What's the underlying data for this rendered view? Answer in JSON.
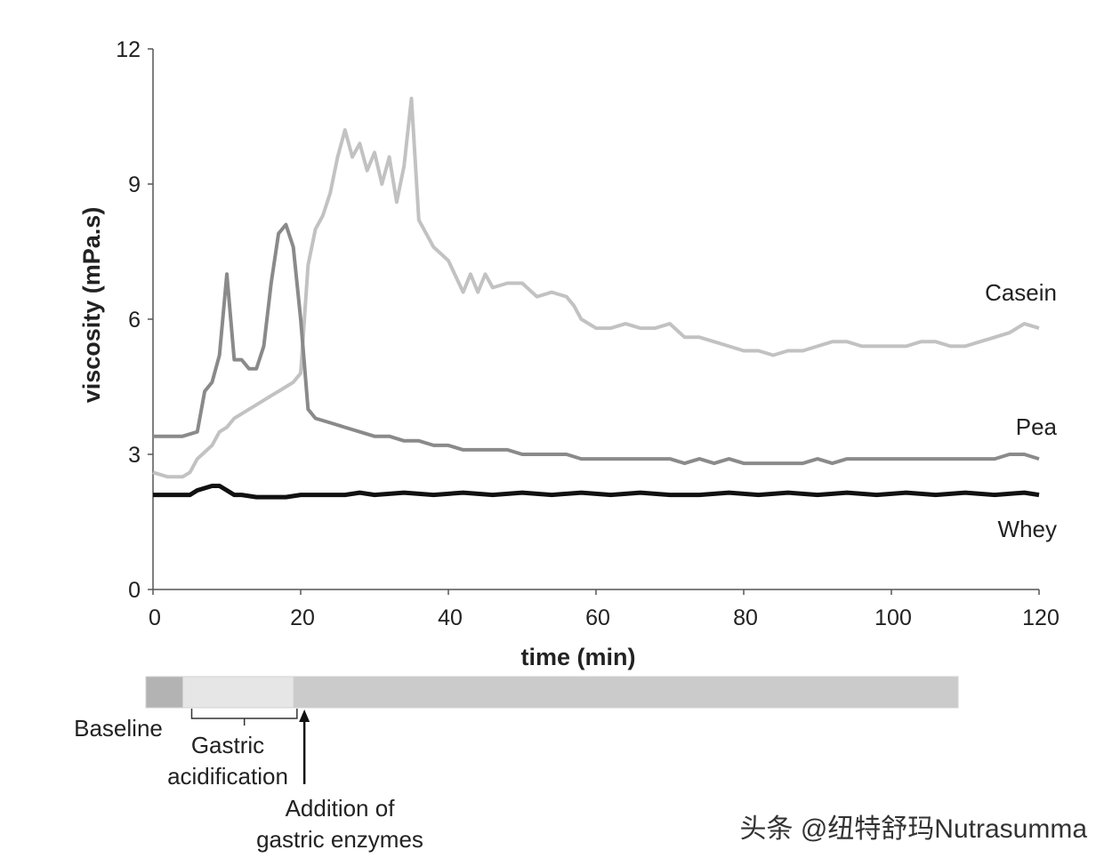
{
  "chart_data": {
    "type": "line",
    "title": "",
    "xlabel": "time (min)",
    "ylabel": "viscosity (mPa.s)",
    "xlim": [
      0,
      120
    ],
    "ylim": [
      0,
      12
    ],
    "xticks": [
      0,
      20,
      40,
      60,
      80,
      100,
      120
    ],
    "yticks": [
      0,
      3,
      6,
      9,
      12
    ],
    "grid": false,
    "legend": "inline labels at right end of each line",
    "series": [
      {
        "name": "Casein",
        "color": "#c2c2c2",
        "x": [
          0,
          2,
          4,
          5,
          6,
          8,
          9,
          10,
          11,
          12,
          13,
          14,
          15,
          16,
          17,
          18,
          19,
          20,
          21,
          22,
          23,
          24,
          25,
          26,
          27,
          28,
          29,
          30,
          31,
          32,
          33,
          34,
          35,
          36,
          37,
          38,
          40,
          42,
          43,
          44,
          45,
          46,
          48,
          50,
          52,
          54,
          56,
          57,
          58,
          60,
          62,
          64,
          66,
          68,
          70,
          72,
          74,
          76,
          78,
          80,
          82,
          84,
          86,
          88,
          90,
          92,
          94,
          96,
          98,
          100,
          102,
          104,
          106,
          108,
          110,
          112,
          114,
          116,
          118,
          120
        ],
        "y": [
          2.6,
          2.5,
          2.5,
          2.6,
          2.9,
          3.2,
          3.5,
          3.6,
          3.8,
          3.9,
          4.0,
          4.1,
          4.2,
          4.3,
          4.4,
          4.5,
          4.6,
          4.8,
          7.2,
          8.0,
          8.3,
          8.8,
          9.6,
          10.2,
          9.6,
          9.9,
          9.3,
          9.7,
          9.0,
          9.6,
          8.6,
          9.4,
          10.9,
          8.2,
          7.9,
          7.6,
          7.3,
          6.6,
          7.0,
          6.6,
          7.0,
          6.7,
          6.8,
          6.8,
          6.5,
          6.6,
          6.5,
          6.3,
          6.0,
          5.8,
          5.8,
          5.9,
          5.8,
          5.8,
          5.9,
          5.6,
          5.6,
          5.5,
          5.4,
          5.3,
          5.3,
          5.2,
          5.3,
          5.3,
          5.4,
          5.5,
          5.5,
          5.4,
          5.4,
          5.4,
          5.4,
          5.5,
          5.5,
          5.4,
          5.4,
          5.5,
          5.6,
          5.7,
          5.9,
          5.8
        ]
      },
      {
        "name": "Pea",
        "color": "#8a8a8a",
        "x": [
          0,
          2,
          4,
          6,
          7,
          8,
          9,
          10,
          11,
          12,
          13,
          14,
          15,
          16,
          17,
          18,
          19,
          20,
          21,
          22,
          24,
          26,
          28,
          30,
          32,
          34,
          36,
          38,
          40,
          42,
          44,
          46,
          48,
          50,
          52,
          54,
          56,
          58,
          60,
          62,
          64,
          66,
          68,
          70,
          72,
          74,
          76,
          78,
          80,
          82,
          84,
          86,
          88,
          90,
          92,
          94,
          96,
          98,
          100,
          102,
          104,
          106,
          108,
          110,
          112,
          114,
          116,
          118,
          120
        ],
        "y": [
          3.4,
          3.4,
          3.4,
          3.5,
          4.4,
          4.6,
          5.2,
          7.0,
          5.1,
          5.1,
          4.9,
          4.9,
          5.4,
          6.8,
          7.9,
          8.1,
          7.6,
          6.0,
          4.0,
          3.8,
          3.7,
          3.6,
          3.5,
          3.4,
          3.4,
          3.3,
          3.3,
          3.2,
          3.2,
          3.1,
          3.1,
          3.1,
          3.1,
          3.0,
          3.0,
          3.0,
          3.0,
          2.9,
          2.9,
          2.9,
          2.9,
          2.9,
          2.9,
          2.9,
          2.8,
          2.9,
          2.8,
          2.9,
          2.8,
          2.8,
          2.8,
          2.8,
          2.8,
          2.9,
          2.8,
          2.9,
          2.9,
          2.9,
          2.9,
          2.9,
          2.9,
          2.9,
          2.9,
          2.9,
          2.9,
          2.9,
          3.0,
          3.0,
          2.9
        ]
      },
      {
        "name": "Whey",
        "color": "#111111",
        "x": [
          0,
          2,
          4,
          5,
          6,
          7,
          8,
          9,
          10,
          11,
          12,
          14,
          16,
          18,
          20,
          22,
          24,
          26,
          28,
          30,
          34,
          38,
          42,
          46,
          50,
          54,
          58,
          62,
          66,
          70,
          74,
          78,
          82,
          86,
          90,
          94,
          98,
          102,
          106,
          110,
          114,
          118,
          120
        ],
        "y": [
          2.1,
          2.1,
          2.1,
          2.1,
          2.2,
          2.25,
          2.3,
          2.3,
          2.2,
          2.1,
          2.1,
          2.05,
          2.05,
          2.05,
          2.1,
          2.1,
          2.1,
          2.1,
          2.15,
          2.1,
          2.15,
          2.1,
          2.15,
          2.1,
          2.15,
          2.1,
          2.15,
          2.1,
          2.15,
          2.1,
          2.1,
          2.15,
          2.1,
          2.15,
          2.1,
          2.15,
          2.1,
          2.15,
          2.1,
          2.15,
          2.1,
          2.15,
          2.1
        ]
      }
    ],
    "timeline": {
      "segments": [
        {
          "from": 0,
          "to": 5,
          "color": "#b3b3b3"
        },
        {
          "from": 5,
          "to": 20,
          "color": "#e6e6e6"
        },
        {
          "from": 20,
          "to": 110,
          "color": "#cbcbcb"
        }
      ],
      "labels": {
        "baseline": "Baseline",
        "gastric_1": "Gastric",
        "gastric_2": "acidification",
        "addition_1": "Addition of",
        "addition_2": "gastric enzymes"
      }
    }
  },
  "watermark": "头条 @纽特舒玛Nutrasumma"
}
